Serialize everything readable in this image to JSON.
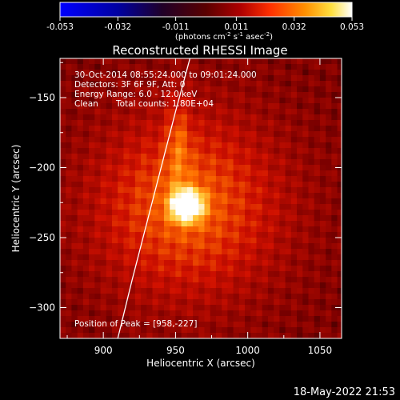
{
  "colorbar": {
    "tick_labels": [
      "-0.053",
      "-0.032",
      "-0.011",
      "0.011",
      "0.032",
      "0.053"
    ],
    "min": -0.053,
    "max": 0.053,
    "unit_label": "(photons cm",
    "unit_sup1": "-2",
    "unit_mid": " s",
    "unit_sup2": "-1",
    "unit_end": " asec",
    "unit_sup3": "-2",
    "unit_close": ")"
  },
  "chart_data": {
    "type": "heatmap",
    "title": "Reconstructed RHESSI Image",
    "xlabel": "Heliocentric X (arcsec)",
    "ylabel": "Heliocentric Y (arcsec)",
    "xlim": [
      870,
      1065
    ],
    "ylim": [
      -322,
      -122
    ],
    "x_ticks": [
      900,
      950,
      1000,
      1050
    ],
    "y_ticks": [
      -150,
      -200,
      -250,
      -300
    ],
    "x_tick_labels": [
      "900",
      "950",
      "1000",
      "1050"
    ],
    "y_tick_labels": [
      "−150",
      "−200",
      "−250",
      "−300"
    ],
    "annotations": {
      "time": "30-Oct-2014 08:55:24.000 to 09:01:24.000",
      "detectors": "Detectors: 3F 6F 9F, Att: 0",
      "energy": "Energy Range: 6.0 - 12.0 keV",
      "method": "Clean",
      "counts": "Total counts: 1.80E+04",
      "peak": "Position of Peak = [958,-227]"
    },
    "peak": {
      "x": 958,
      "y": -227
    },
    "limb_curve": [
      [
        910,
        -322
      ],
      [
        920,
        -280
      ],
      [
        935,
        -220
      ],
      [
        950,
        -160
      ],
      [
        960,
        -122
      ]
    ],
    "colormap": [
      "#0000ff",
      "#00008c",
      "#000000",
      "#800000",
      "#ff4000",
      "#ffb000",
      "#ffffff"
    ]
  },
  "footer": {
    "timestamp": "18-May-2022 21:53"
  }
}
